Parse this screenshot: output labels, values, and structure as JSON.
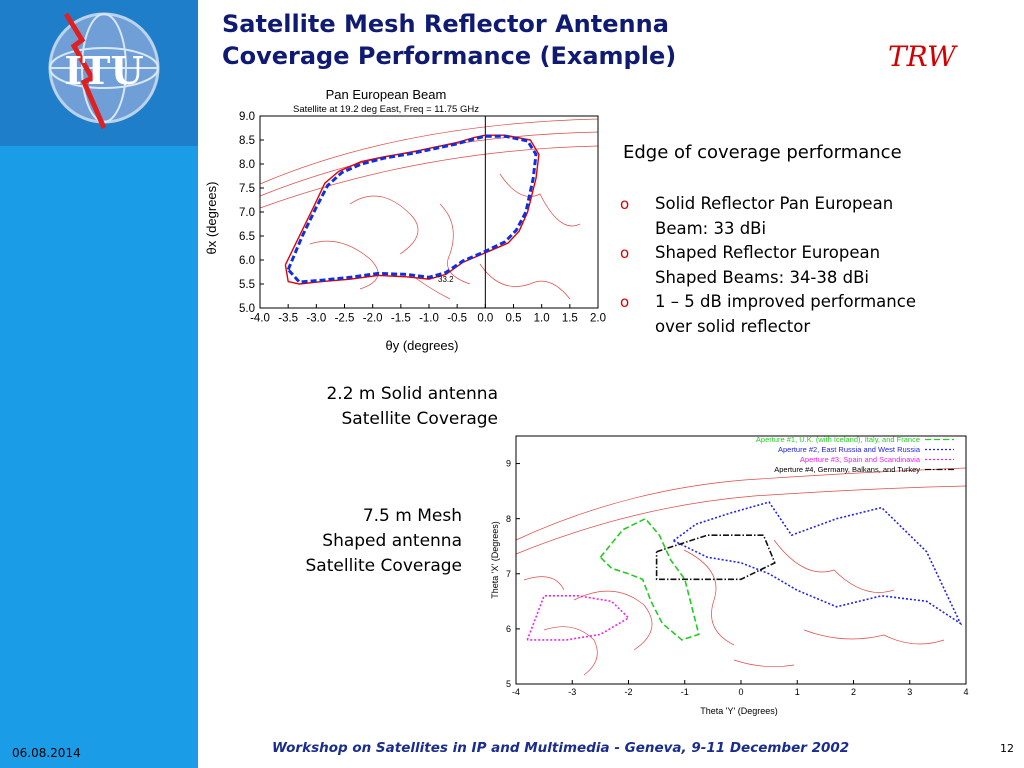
{
  "slide": {
    "title_line1": "Satellite Mesh Reflector Antenna",
    "title_line2": "Coverage Performance (Example)",
    "logo_text": "TRW",
    "itu_logo_text": "ITU",
    "bullets_title": "Edge of coverage performance",
    "bullet_marker": "o",
    "bullets": [
      {
        "l1": "Solid Reflector Pan European",
        "l2": "Beam:  33 dBi"
      },
      {
        "l1": "Shaped Reflector European",
        "l2": "Shaped Beams:     34-38 dBi"
      },
      {
        "l1": "1 – 5 dB improved performance",
        "l2": "over solid reflector"
      }
    ],
    "label1_l1": "2.2 m Solid antenna",
    "label1_l2": "Satellite Coverage",
    "label2_l1": "7.5 m Mesh",
    "label2_l2": "Shaped antenna",
    "label2_l3": "Satellite Coverage",
    "footer": "Workshop on Satellites in IP and Multimedia - Geneva, 9-11 December 2002",
    "date": "06.08.2014",
    "page_number": "12"
  },
  "colors": {
    "sidebar": "#1a9ce6",
    "title": "#0f1a73",
    "trw": "#d40000",
    "footer": "#1a2d8f",
    "map_lines": "#e24848"
  },
  "chart_data": [
    {
      "type": "line",
      "title": "Pan European Beam",
      "subtitle": "Satellite at 19.2 deg East, Freq = 11.75 GHz",
      "xlabel": "θy (degrees)",
      "ylabel": "θx (degrees)",
      "xlim": [
        -4.0,
        2.0
      ],
      "ylim": [
        5.0,
        9.0
      ],
      "x_ticks": [
        "-4.0",
        "-3.5",
        "-3.0",
        "-2.5",
        "-2.0",
        "-1.5",
        "-1.0",
        "-0.5",
        "0.0",
        "0.5",
        "1.0",
        "1.5",
        "2.0"
      ],
      "y_ticks": [
        "5.0",
        "5.5",
        "6.0",
        "6.5",
        "7.0",
        "7.5",
        "8.0",
        "8.5",
        "9.0"
      ],
      "contour_label": "33.2",
      "series": [
        {
          "style": "solid",
          "color": "#e00000",
          "points": [
            [
              -3.55,
              5.9
            ],
            [
              -3.3,
              6.5
            ],
            [
              -3.05,
              7.1
            ],
            [
              -2.85,
              7.6
            ],
            [
              -2.6,
              7.85
            ],
            [
              -2.2,
              8.05
            ],
            [
              -1.8,
              8.15
            ],
            [
              -1.3,
              8.25
            ],
            [
              -0.9,
              8.35
            ],
            [
              -0.5,
              8.45
            ],
            [
              -0.2,
              8.55
            ],
            [
              0.0,
              8.6
            ],
            [
              0.35,
              8.6
            ],
            [
              0.8,
              8.5
            ],
            [
              0.95,
              8.2
            ],
            [
              0.9,
              7.7
            ],
            [
              0.75,
              7.0
            ],
            [
              0.6,
              6.6
            ],
            [
              0.4,
              6.35
            ],
            [
              0.0,
              6.15
            ],
            [
              -0.4,
              5.95
            ],
            [
              -0.7,
              5.7
            ],
            [
              -1.0,
              5.6
            ],
            [
              -1.4,
              5.65
            ],
            [
              -1.9,
              5.68
            ],
            [
              -2.4,
              5.6
            ],
            [
              -2.9,
              5.55
            ],
            [
              -3.3,
              5.5
            ],
            [
              -3.5,
              5.55
            ],
            [
              -3.55,
              5.9
            ]
          ]
        },
        {
          "style": "dashed",
          "color": "#1030e0",
          "points": [
            [
              -3.5,
              5.8
            ],
            [
              -3.25,
              6.5
            ],
            [
              -3.0,
              7.1
            ],
            [
              -2.8,
              7.55
            ],
            [
              -2.55,
              7.82
            ],
            [
              -2.2,
              8.0
            ],
            [
              -1.8,
              8.12
            ],
            [
              -1.3,
              8.22
            ],
            [
              -0.9,
              8.32
            ],
            [
              -0.5,
              8.42
            ],
            [
              -0.2,
              8.52
            ],
            [
              0.0,
              8.58
            ],
            [
              0.35,
              8.58
            ],
            [
              0.75,
              8.48
            ],
            [
              0.9,
              8.2
            ],
            [
              0.85,
              7.7
            ],
            [
              0.72,
              7.0
            ],
            [
              0.55,
              6.62
            ],
            [
              0.35,
              6.38
            ],
            [
              0.0,
              6.18
            ],
            [
              -0.4,
              5.98
            ],
            [
              -0.7,
              5.74
            ],
            [
              -1.0,
              5.64
            ],
            [
              -1.4,
              5.7
            ],
            [
              -1.9,
              5.72
            ],
            [
              -2.4,
              5.64
            ],
            [
              -2.9,
              5.58
            ],
            [
              -3.3,
              5.54
            ],
            [
              -3.5,
              5.8
            ]
          ]
        }
      ]
    },
    {
      "type": "line",
      "xlabel": "Theta 'Y' (Degrees)",
      "ylabel": "Theta 'X' (Degrees)",
      "xlim": [
        -4,
        4
      ],
      "ylim": [
        5,
        9.5
      ],
      "x_ticks": [
        "-4",
        "-3",
        "-2",
        "-1",
        "0",
        "1",
        "2",
        "3",
        "4"
      ],
      "y_ticks": [
        "5",
        "6",
        "7",
        "8",
        "9"
      ],
      "series": [
        {
          "name": "Aperture #1, U.K. (with Iceland), Italy, and France",
          "color": "#22cc22",
          "style": "dashed",
          "points": [
            [
              -2.5,
              7.3
            ],
            [
              -2.1,
              7.8
            ],
            [
              -1.7,
              8.0
            ],
            [
              -1.45,
              7.7
            ],
            [
              -1.25,
              7.25
            ],
            [
              -1.0,
              6.9
            ],
            [
              -0.9,
              6.5
            ],
            [
              -0.75,
              5.9
            ],
            [
              -1.05,
              5.8
            ],
            [
              -1.4,
              6.1
            ],
            [
              -1.6,
              6.5
            ],
            [
              -1.75,
              6.9
            ],
            [
              -2.0,
              7.0
            ],
            [
              -2.3,
              7.1
            ],
            [
              -2.5,
              7.3
            ]
          ]
        },
        {
          "name": "Aperture #2, East Russia and West Russia",
          "color": "#2222ee",
          "style": "dotted",
          "points": [
            [
              -1.2,
              7.6
            ],
            [
              -0.8,
              7.9
            ],
            [
              -0.2,
              8.1
            ],
            [
              0.5,
              8.3
            ],
            [
              0.9,
              7.7
            ],
            [
              1.7,
              8.0
            ],
            [
              2.5,
              8.2
            ],
            [
              3.3,
              7.4
            ],
            [
              3.9,
              6.1
            ],
            [
              3.3,
              6.5
            ],
            [
              2.5,
              6.6
            ],
            [
              1.7,
              6.4
            ],
            [
              1.0,
              6.7
            ],
            [
              0.5,
              7.0
            ],
            [
              0.0,
              7.2
            ],
            [
              -0.6,
              7.3
            ],
            [
              -1.2,
              7.6
            ]
          ]
        },
        {
          "name": "Aperture #3, Spain and Scandinavia",
          "color": "#ee22ee",
          "style": "dotted",
          "points": [
            [
              -3.8,
              5.8
            ],
            [
              -3.5,
              6.6
            ],
            [
              -2.9,
              6.6
            ],
            [
              -2.3,
              6.5
            ],
            [
              -2.0,
              6.2
            ],
            [
              -2.5,
              5.9
            ],
            [
              -3.1,
              5.8
            ],
            [
              -3.8,
              5.8
            ]
          ]
        },
        {
          "name": "Aperture #4, Germany, Balkans, and Turkey",
          "color": "#111111",
          "style": "dashdot",
          "points": [
            [
              -1.5,
              7.4
            ],
            [
              -0.6,
              7.7
            ],
            [
              0.4,
              7.7
            ],
            [
              0.6,
              7.2
            ],
            [
              0.0,
              6.9
            ],
            [
              -0.6,
              6.9
            ],
            [
              -1.5,
              6.9
            ],
            [
              -1.5,
              7.4
            ]
          ]
        }
      ]
    }
  ]
}
